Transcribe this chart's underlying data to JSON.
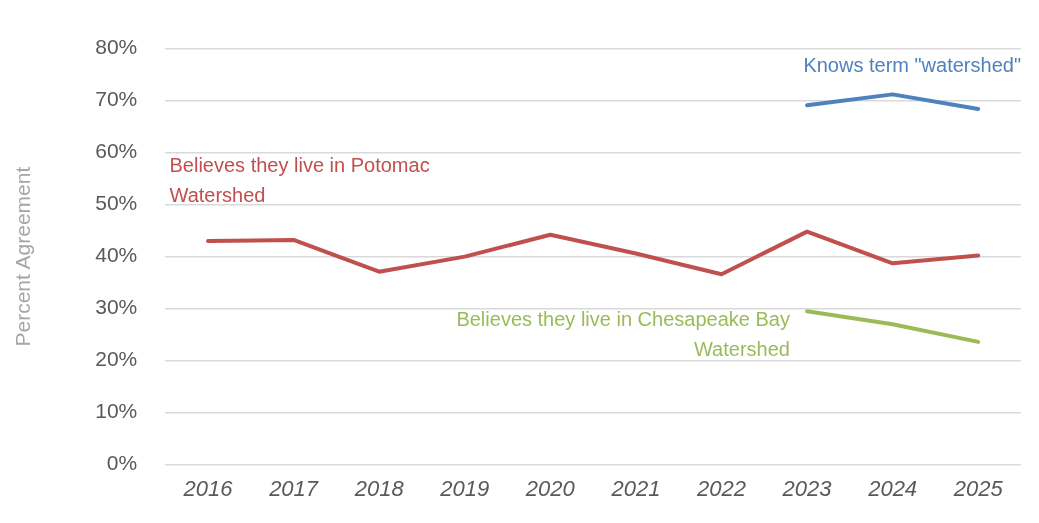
{
  "chart_data": {
    "type": "line",
    "ylabel": "Percent Agreement",
    "categories": [
      "2016",
      "2017",
      "2018",
      "2019",
      "2020",
      "2021",
      "2022",
      "2023",
      "2024",
      "2025"
    ],
    "series": [
      {
        "name": "Believes they live in Potomac Watershed",
        "color": "#c0504d",
        "values": [
          43.0,
          43.2,
          37.1,
          40.0,
          44.2,
          40.6,
          36.6,
          44.8,
          38.7,
          40.2
        ]
      },
      {
        "name": "Knows term \"watershed\"",
        "color": "#4f81bd",
        "values": [
          null,
          null,
          null,
          null,
          null,
          null,
          null,
          69.1,
          71.2,
          68.4
        ]
      },
      {
        "name": "Believes they live in Chesapeake Bay Watershed",
        "color": "#9bbb59",
        "values": [
          null,
          null,
          null,
          null,
          null,
          null,
          null,
          29.5,
          27.0,
          23.6
        ]
      }
    ],
    "ylim": [
      0,
      80
    ],
    "yticks": [
      {
        "value": 0,
        "label": "0%"
      },
      {
        "value": 10,
        "label": "10%"
      },
      {
        "value": 20,
        "label": "20%"
      },
      {
        "value": 30,
        "label": "30%"
      },
      {
        "value": 40,
        "label": "40%"
      },
      {
        "value": 50,
        "label": "50%"
      },
      {
        "value": 60,
        "label": "60%"
      },
      {
        "value": 70,
        "label": "70%"
      },
      {
        "value": 80,
        "label": "80%"
      }
    ],
    "grid": "y",
    "legend": false,
    "marker": "none",
    "line_style": "solid"
  }
}
